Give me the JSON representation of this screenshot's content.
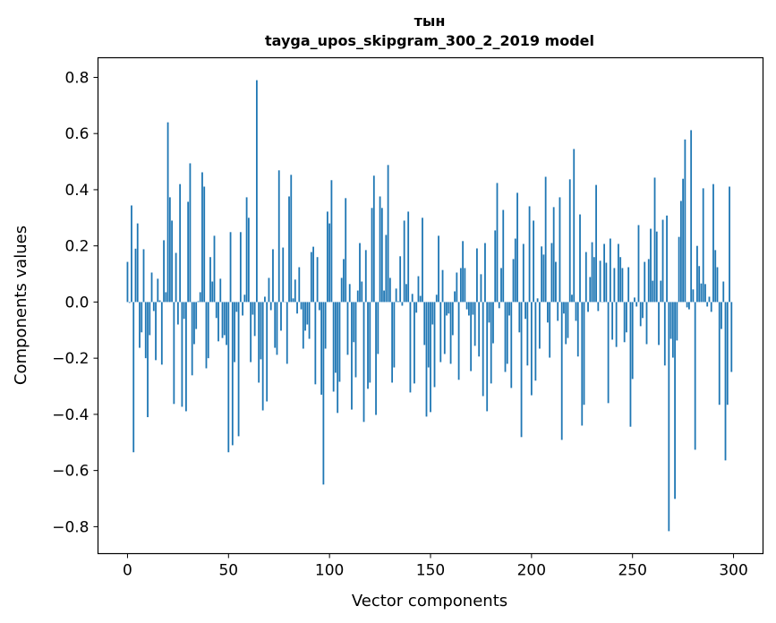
{
  "chart_data": {
    "type": "bar",
    "title_line1": "тын",
    "title_line2": "tayga_upos_skipgram_300_2_2019 model",
    "xlabel": "Vector components",
    "ylabel": "Components values",
    "xlim": [
      -14.6,
      314.6
    ],
    "ylim": [
      -0.896,
      0.87
    ],
    "xticks": [
      0,
      50,
      100,
      150,
      200,
      250,
      300
    ],
    "xtick_labels": [
      "0",
      "50",
      "100",
      "150",
      "200",
      "250",
      "300"
    ],
    "yticks": [
      -0.8,
      -0.6,
      -0.4,
      -0.2,
      0.0,
      0.2,
      0.4,
      0.6,
      0.8
    ],
    "ytick_labels": [
      "−0.8",
      "−0.6",
      "−0.4",
      "−0.2",
      "0.0",
      "0.2",
      "0.4",
      "0.6",
      "0.8"
    ],
    "grid": false,
    "bar_color": "#1f77b4",
    "values": [
      0.143,
      -0.003,
      0.344,
      -0.535,
      0.19,
      0.28,
      -0.163,
      -0.108,
      0.188,
      -0.2,
      -0.41,
      -0.118,
      0.105,
      -0.032,
      -0.207,
      0.083,
      0.006,
      -0.223,
      0.22,
      0.035,
      0.64,
      0.373,
      0.29,
      -0.363,
      0.175,
      -0.08,
      0.42,
      -0.373,
      -0.06,
      -0.389,
      0.357,
      0.494,
      -0.261,
      -0.15,
      -0.096,
      0.003,
      0.035,
      0.462,
      0.411,
      -0.236,
      -0.2,
      0.16,
      0.073,
      0.236,
      -0.057,
      -0.14,
      0.083,
      -0.128,
      -0.118,
      -0.153,
      -0.535,
      0.249,
      -0.51,
      -0.214,
      -0.035,
      -0.478,
      0.249,
      -0.048,
      0.026,
      0.373,
      0.3,
      -0.214,
      -0.045,
      -0.121,
      0.79,
      -0.287,
      -0.204,
      -0.386,
      0.019,
      -0.354,
      0.086,
      -0.029,
      0.188,
      -0.163,
      -0.188,
      0.469,
      -0.102,
      0.194,
      0.0,
      -0.22,
      0.376,
      0.453,
      0.013,
      0.08,
      -0.041,
      0.124,
      -0.026,
      -0.166,
      -0.102,
      -0.08,
      -0.131,
      0.178,
      0.197,
      -0.293,
      0.16,
      -0.029,
      -0.33,
      -0.65,
      -0.166,
      0.322,
      0.28,
      0.434,
      -0.319,
      -0.252,
      -0.395,
      -0.284,
      0.086,
      0.153,
      0.37,
      -0.188,
      0.064,
      -0.383,
      -0.143,
      -0.268,
      0.041,
      0.21,
      0.073,
      -0.427,
      0.185,
      -0.309,
      -0.287,
      0.335,
      0.45,
      -0.402,
      -0.185,
      0.376,
      0.335,
      0.041,
      0.239,
      0.488,
      0.086,
      -0.287,
      -0.233,
      0.048,
      0.003,
      0.163,
      -0.013,
      0.29,
      0.064,
      0.322,
      -0.322,
      0.029,
      -0.29,
      -0.038,
      0.092,
      0.022,
      0.3,
      -0.153,
      -0.408,
      -0.233,
      -0.392,
      -0.08,
      -0.303,
      0.026,
      0.236,
      -0.214,
      0.114,
      -0.185,
      -0.048,
      -0.041,
      -0.22,
      -0.118,
      0.038,
      0.105,
      -0.277,
      0.121,
      0.217,
      0.121,
      -0.026,
      -0.048,
      -0.246,
      -0.045,
      -0.156,
      0.191,
      -0.194,
      0.099,
      -0.335,
      0.21,
      -0.389,
      -0.073,
      -0.29,
      -0.147,
      0.255,
      0.424,
      -0.022,
      0.121,
      0.328,
      -0.249,
      -0.22,
      -0.048,
      -0.306,
      0.153,
      0.226,
      0.389,
      -0.108,
      -0.481,
      0.207,
      -0.06,
      -0.226,
      0.341,
      -0.332,
      0.29,
      -0.28,
      0.013,
      -0.166,
      0.198,
      0.169,
      0.446,
      -0.073,
      -0.198,
      0.21,
      0.338,
      0.143,
      -0.067,
      0.373,
      -0.491,
      -0.041,
      -0.15,
      -0.128,
      0.437,
      0.026,
      0.545,
      -0.067,
      -0.194,
      0.312,
      -0.44,
      -0.366,
      0.178,
      -0.035,
      0.089,
      0.213,
      0.16,
      0.417,
      -0.032,
      0.147,
      0.0,
      0.207,
      0.14,
      -0.36,
      0.226,
      -0.134,
      0.121,
      -0.16,
      0.207,
      0.16,
      0.121,
      -0.143,
      -0.108,
      0.124,
      -0.444,
      -0.274,
      0.016,
      -0.016,
      0.274,
      -0.086,
      -0.057,
      0.143,
      -0.15,
      0.153,
      0.261,
      0.076,
      0.443,
      0.251,
      -0.153,
      0.076,
      0.293,
      -0.226,
      0.308,
      -0.816,
      -0.131,
      -0.198,
      -0.701,
      -0.137,
      0.232,
      0.36,
      0.439,
      0.579,
      -0.019,
      -0.026,
      0.612,
      0.045,
      -0.526,
      0.2,
      0.128,
      0.066,
      0.405,
      0.064,
      -0.016,
      0.019,
      -0.035,
      0.42,
      0.185,
      0.124,
      -0.366,
      -0.096,
      0.073,
      -0.564,
      -0.366,
      0.411,
      -0.249
    ]
  }
}
